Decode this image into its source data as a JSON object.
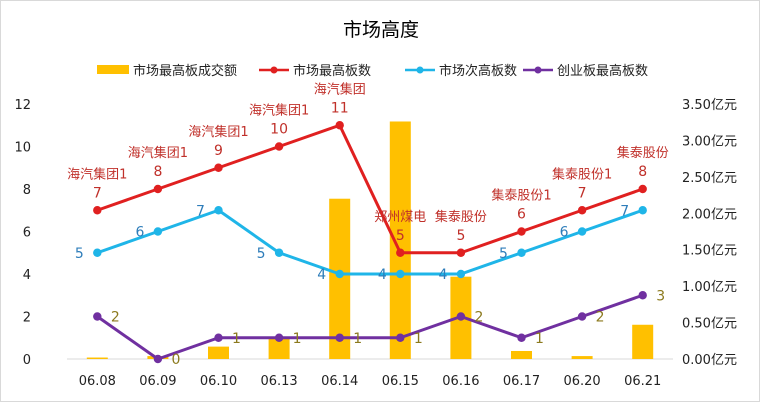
{
  "chart_data": {
    "type": "bar+line",
    "title": "市场高度",
    "categories": [
      "06.08",
      "06.09",
      "06.10",
      "06.13",
      "06.14",
      "06.15",
      "06.16",
      "06.17",
      "06.20",
      "06.21"
    ],
    "left_axis": {
      "ticks": [
        "0",
        "2",
        "4",
        "6",
        "8",
        "10",
        "12"
      ],
      "ylim": [
        0,
        12
      ]
    },
    "right_axis": {
      "ticks": [
        "0.00亿元",
        "0.50亿元",
        "1.00亿元",
        "1.50亿元",
        "2.00亿元",
        "2.50亿元",
        "3.00亿元",
        "3.50亿元"
      ],
      "ylim": [
        0,
        3.5
      ]
    },
    "bar_series": {
      "name": "市场最高板成交额",
      "axis": "right",
      "color": "#FFC000",
      "values": [
        0.02,
        0.04,
        0.17,
        0.3,
        2.2,
        3.26,
        1.13,
        0.11,
        0.04,
        0.47
      ]
    },
    "line_series": [
      {
        "name": "市场最高板数",
        "color": "#E02020",
        "values": [
          7,
          8,
          9,
          10,
          11,
          5,
          5,
          6,
          7,
          8
        ],
        "value_labels": [
          "7",
          "8",
          "9",
          "10",
          "11",
          "5",
          "5",
          "6",
          "7",
          "8"
        ],
        "stock_labels": [
          "海汽集团1",
          "海汽集团1",
          "海汽集团1",
          "海汽集团1",
          "海汽集团",
          "郑州煤电",
          "集泰股份",
          "集泰股份1",
          "集泰股份1",
          "集泰股份"
        ],
        "label_color": "#C0302A"
      },
      {
        "name": "市场次高板数",
        "color": "#1FB5E8",
        "values": [
          5,
          6,
          7,
          5,
          4,
          4,
          4,
          5,
          6,
          7
        ],
        "value_labels": [
          "5",
          "6",
          "7",
          "5",
          "4",
          "4",
          "4",
          "5",
          "6",
          "7"
        ],
        "label_color": "#2E7DBA"
      },
      {
        "name": "创业板最高板数",
        "color": "#7030A0",
        "values": [
          2,
          0,
          1,
          1,
          1,
          1,
          2,
          1,
          2,
          3
        ],
        "value_labels": [
          "2",
          "0",
          "1",
          "1",
          "1",
          "1",
          "2",
          "1",
          "2",
          "3"
        ],
        "label_color": "#8C7A1E"
      }
    ],
    "legend_position": "top",
    "grid": false
  }
}
